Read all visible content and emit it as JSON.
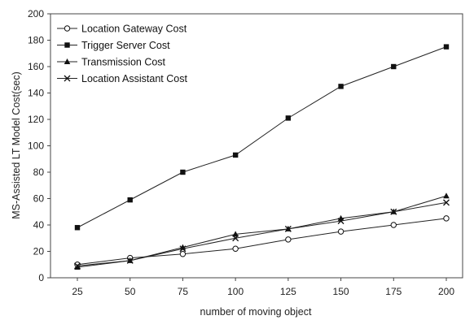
{
  "chart_data": {
    "type": "line",
    "title": "",
    "xlabel": "number of moving object",
    "ylabel": "MS-Assisted LT Model Cost(sec)",
    "x": [
      25,
      50,
      75,
      100,
      125,
      150,
      175,
      200
    ],
    "ylim": [
      0,
      200
    ],
    "yticks": [
      0,
      20,
      40,
      60,
      80,
      100,
      120,
      140,
      160,
      180,
      200
    ],
    "grid": false,
    "legend_position": "top-left",
    "series": [
      {
        "name": "Location Gateway Cost",
        "marker": "open-circle",
        "values": [
          10,
          15,
          18,
          22,
          29,
          35,
          40,
          45
        ]
      },
      {
        "name": "Trigger Server Cost",
        "marker": "filled-square",
        "values": [
          38,
          59,
          80,
          93,
          121,
          145,
          160,
          175
        ]
      },
      {
        "name": "Transmission Cost",
        "marker": "filled-triangle",
        "values": [
          8,
          13,
          23,
          33,
          37,
          45,
          50,
          62
        ]
      },
      {
        "name": "Location Assistant Cost",
        "marker": "x-cross",
        "values": [
          9,
          13,
          22,
          30,
          37,
          43,
          50,
          57
        ]
      }
    ]
  }
}
